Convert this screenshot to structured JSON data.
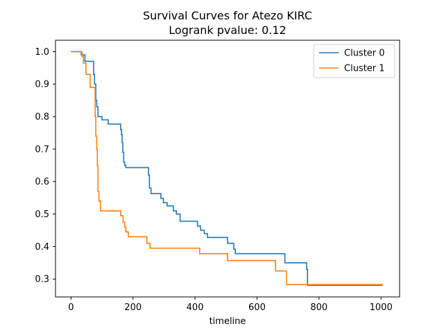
{
  "chart_data": {
    "type": "line",
    "title": "Survival Curves for Atezo KIRC",
    "subtitle": "Logrank pvalue: 0.12",
    "xlabel": "timeline",
    "ylabel": "",
    "xlim": [
      -50,
      1060
    ],
    "ylim": [
      0.245,
      1.035
    ],
    "xticks": [
      0,
      200,
      400,
      600,
      800,
      1000
    ],
    "yticks": [
      0.3,
      0.4,
      0.5,
      0.6,
      0.7,
      0.8,
      0.9,
      1.0
    ],
    "xtick_labels": [
      "0",
      "200",
      "400",
      "600",
      "800",
      "1000"
    ],
    "ytick_labels": [
      "0.3",
      "0.4",
      "0.5",
      "0.6",
      "0.7",
      "0.8",
      "0.9",
      "1.0"
    ],
    "grid": false,
    "legend_position": "top-right",
    "series": [
      {
        "name": "Cluster 0",
        "color": "#1f77b4",
        "steps": [
          [
            0,
            1.0
          ],
          [
            33,
            0.99
          ],
          [
            45,
            0.97
          ],
          [
            73,
            0.93
          ],
          [
            76,
            0.9
          ],
          [
            80,
            0.85
          ],
          [
            83,
            0.83
          ],
          [
            87,
            0.8
          ],
          [
            100,
            0.79
          ],
          [
            120,
            0.777
          ],
          [
            160,
            0.76
          ],
          [
            163,
            0.745
          ],
          [
            165,
            0.72
          ],
          [
            167,
            0.69
          ],
          [
            170,
            0.66
          ],
          [
            173,
            0.65
          ],
          [
            177,
            0.643
          ],
          [
            250,
            0.62
          ],
          [
            253,
            0.58
          ],
          [
            258,
            0.563
          ],
          [
            290,
            0.548
          ],
          [
            298,
            0.535
          ],
          [
            310,
            0.525
          ],
          [
            330,
            0.51
          ],
          [
            340,
            0.5
          ],
          [
            352,
            0.478
          ],
          [
            408,
            0.463
          ],
          [
            418,
            0.45
          ],
          [
            430,
            0.44
          ],
          [
            440,
            0.428
          ],
          [
            505,
            0.41
          ],
          [
            525,
            0.392
          ],
          [
            530,
            0.378
          ],
          [
            690,
            0.35
          ],
          [
            760,
            0.33
          ],
          [
            763,
            0.281
          ],
          [
            1005,
            0.281
          ]
        ]
      },
      {
        "name": "Cluster 1",
        "color": "#ff7f0e",
        "steps": [
          [
            0,
            1.0
          ],
          [
            35,
            0.985
          ],
          [
            40,
            0.965
          ],
          [
            48,
            0.93
          ],
          [
            62,
            0.89
          ],
          [
            78,
            0.8
          ],
          [
            80,
            0.74
          ],
          [
            83,
            0.7
          ],
          [
            85,
            0.65
          ],
          [
            87,
            0.57
          ],
          [
            90,
            0.54
          ],
          [
            95,
            0.51
          ],
          [
            160,
            0.495
          ],
          [
            168,
            0.475
          ],
          [
            173,
            0.46
          ],
          [
            177,
            0.445
          ],
          [
            185,
            0.43
          ],
          [
            245,
            0.41
          ],
          [
            255,
            0.395
          ],
          [
            415,
            0.378
          ],
          [
            505,
            0.357
          ],
          [
            660,
            0.325
          ],
          [
            695,
            0.283
          ],
          [
            1005,
            0.283
          ]
        ]
      }
    ]
  }
}
